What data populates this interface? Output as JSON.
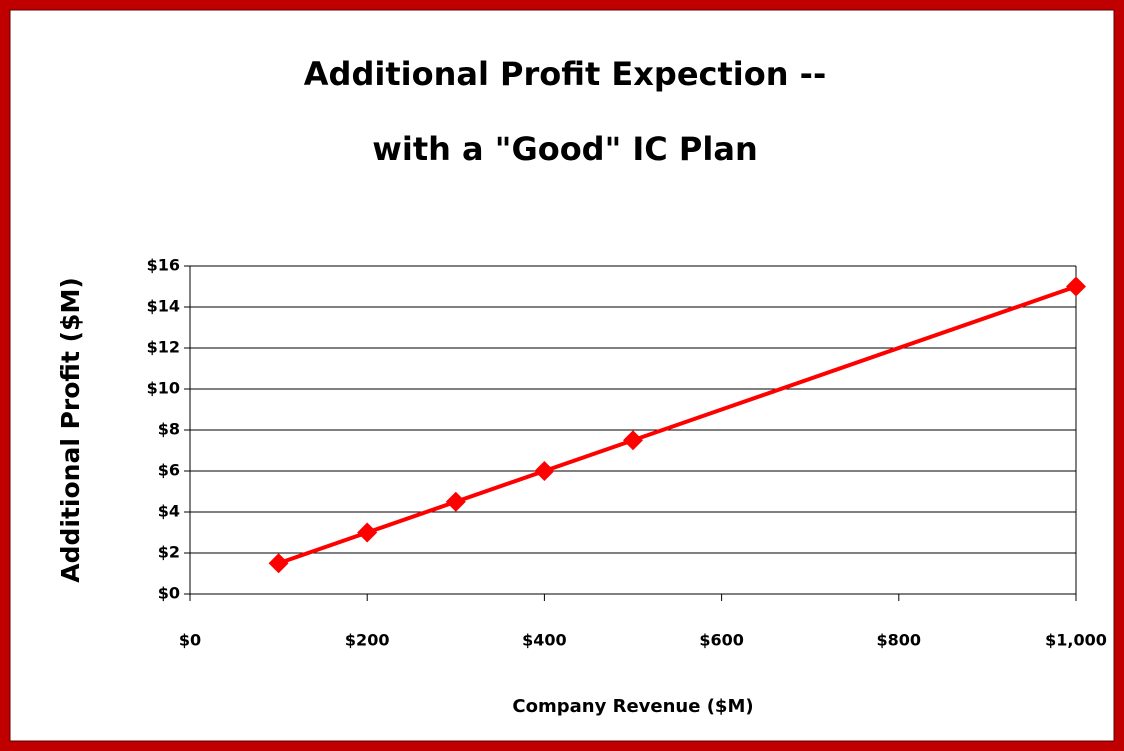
{
  "chart_data": {
    "type": "line",
    "title": [
      "Additional Profit Expection --",
      "with a \"Good\" IC Plan"
    ],
    "x_label": "Company Revenue ($M)",
    "y_label": "Additional Profit  ($M)",
    "x": [
      100,
      200,
      300,
      400,
      500,
      1000
    ],
    "series": [
      {
        "name": "Additional Profit",
        "color": "#ff0000",
        "values": [
          1.5,
          3,
          4.5,
          6,
          7.5,
          15
        ]
      }
    ],
    "xlim": [
      0,
      1000
    ],
    "xticks": [
      {
        "value": 0,
        "label": "$0"
      },
      {
        "value": 200,
        "label": "$200"
      },
      {
        "value": 400,
        "label": "$400"
      },
      {
        "value": 600,
        "label": "$600"
      },
      {
        "value": 800,
        "label": "$800"
      },
      {
        "value": 1000,
        "label": "$1,000"
      }
    ],
    "ylim": [
      0,
      16
    ],
    "yticks": [
      {
        "value": 0,
        "label": "$0"
      },
      {
        "value": 2,
        "label": "$2"
      },
      {
        "value": 4,
        "label": "$4"
      },
      {
        "value": 6,
        "label": "$6"
      },
      {
        "value": 8,
        "label": "$8"
      },
      {
        "value": 10,
        "label": "$10"
      },
      {
        "value": 12,
        "label": "$12"
      },
      {
        "value": 14,
        "label": "$14"
      },
      {
        "value": 16,
        "label": "$16"
      }
    ],
    "grid": true
  }
}
